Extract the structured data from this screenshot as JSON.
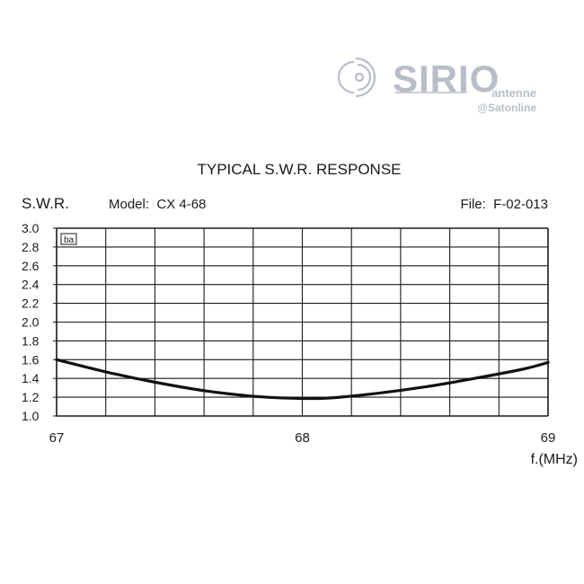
{
  "logo": {
    "brand": "SIRIO",
    "tagline": "antenne",
    "watermark": "@Satonline",
    "color": "#b8bec8"
  },
  "chart_data": {
    "type": "line",
    "title": "TYPICAL S.W.R. RESPONSE",
    "ylabel": "S.W.R.",
    "xlabel": "f.(MHz)",
    "model": "Model:  CX 4-68",
    "file": "File:  F-02-013",
    "xlim": [
      67,
      69
    ],
    "ylim": [
      1.0,
      3.0
    ],
    "x_ticks": [
      "67",
      "68",
      "69"
    ],
    "y_ticks": [
      "1.0",
      "1.2",
      "1.4",
      "1.6",
      "1.8",
      "2.0",
      "2.2",
      "2.4",
      "2.6",
      "2.8",
      "3.0"
    ],
    "grid": true,
    "corner_label": "ba",
    "series": [
      {
        "x": [
          67.0,
          67.2,
          67.4,
          67.6,
          67.8,
          67.95,
          68.1,
          68.3,
          68.5,
          68.7,
          68.9,
          69.0
        ],
        "y": [
          1.6,
          1.47,
          1.36,
          1.27,
          1.21,
          1.19,
          1.19,
          1.24,
          1.31,
          1.4,
          1.5,
          1.57
        ]
      }
    ]
  }
}
